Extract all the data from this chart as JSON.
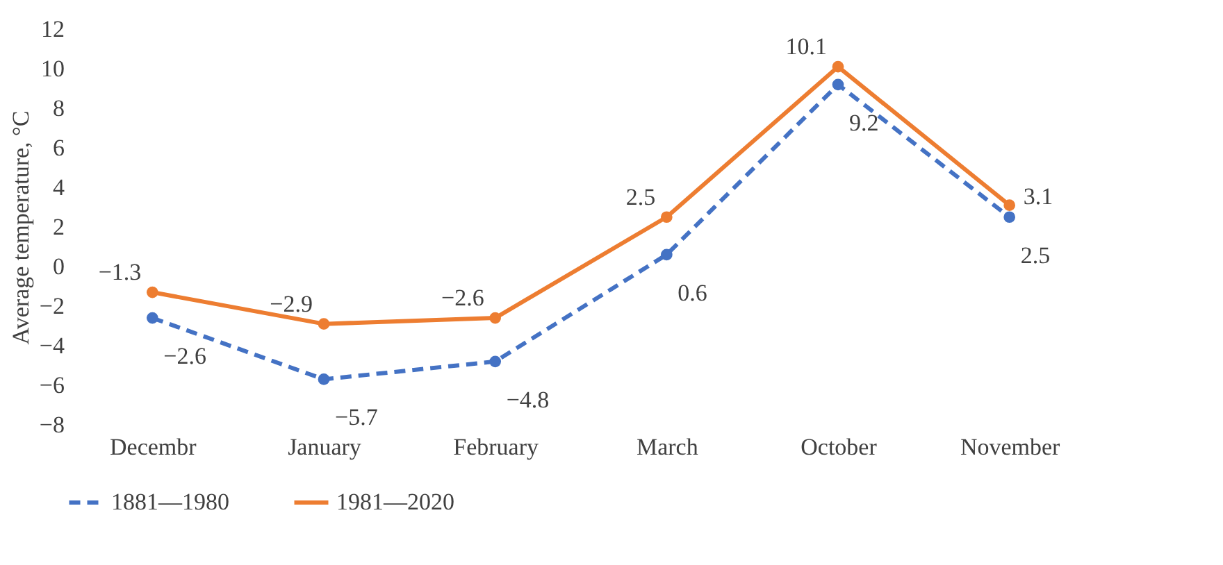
{
  "chart_data": {
    "type": "line",
    "ylabel": "Average  temperature, °C",
    "categories": [
      "Decembr",
      "January",
      "February",
      "March",
      "October",
      "November"
    ],
    "series": [
      {
        "name": "1881—1980",
        "color": "#4472c4",
        "line_style": "dashed",
        "values": [
          -2.6,
          -5.7,
          -4.8,
          0.6,
          9.2,
          2.5
        ]
      },
      {
        "name": "1981—2020",
        "color": "#ed7d31",
        "line_style": "solid",
        "values": [
          -1.3,
          -2.9,
          -2.6,
          2.5,
          10.1,
          3.1
        ]
      }
    ],
    "ylim": [
      -8,
      12
    ],
    "yticks": [
      -8,
      -6,
      -4,
      -2,
      0,
      2,
      4,
      6,
      8,
      10,
      12
    ],
    "grid": false,
    "legend": "bottom",
    "marker": "circle",
    "data_labels": true
  }
}
